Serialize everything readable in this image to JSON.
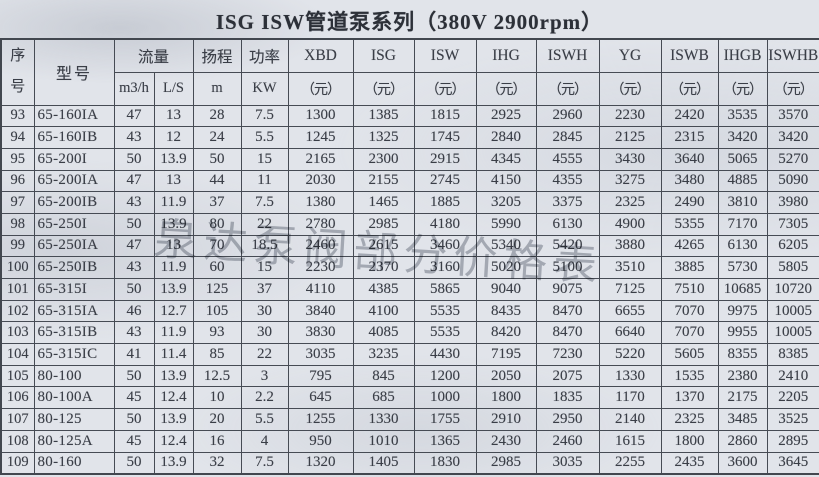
{
  "title": "ISG  ISW管道泵系列（380V  2900rpm）",
  "watermark": "泉达泵阀部分价格表",
  "colors": {
    "page_bg": "#e1e4ea",
    "grid_line": "#464b54",
    "text": "#3a3e47",
    "watermark": "#787e89"
  },
  "table": {
    "header": {
      "serial": "序\n号",
      "model": "型号",
      "flow": "流量",
      "flow_units": [
        "m3/h",
        "L/S"
      ],
      "head": "扬程",
      "head_unit": "m",
      "power": "功率",
      "power_unit": "KW",
      "brands": [
        "XBD",
        "ISG",
        "ISW",
        "IHG",
        "ISWH",
        "YG",
        "ISWB",
        "IHGB",
        "ISWHB"
      ],
      "unit_yuan": "（元）"
    },
    "rows": [
      {
        "no": "93",
        "model": "65-160IA",
        "values": [
          "47",
          "13",
          "28",
          "7.5",
          "1300",
          "1385",
          "1815",
          "2925",
          "2960",
          "2230",
          "2420",
          "3535",
          "3570"
        ]
      },
      {
        "no": "94",
        "model": "65-160IB",
        "values": [
          "43",
          "12",
          "24",
          "5.5",
          "1245",
          "1325",
          "1745",
          "2840",
          "2845",
          "2125",
          "2315",
          "3420",
          "3420"
        ]
      },
      {
        "no": "95",
        "model": "65-200I",
        "values": [
          "50",
          "13.9",
          "50",
          "15",
          "2165",
          "2300",
          "2915",
          "4345",
          "4555",
          "3430",
          "3640",
          "5065",
          "5270"
        ]
      },
      {
        "no": "96",
        "model": "65-200IA",
        "values": [
          "47",
          "13",
          "44",
          "11",
          "2030",
          "2155",
          "2745",
          "4150",
          "4355",
          "3275",
          "3480",
          "4885",
          "5090"
        ]
      },
      {
        "no": "97",
        "model": "65-200IB",
        "values": [
          "43",
          "11.9",
          "37",
          "7.5",
          "1380",
          "1465",
          "1885",
          "3205",
          "3375",
          "2325",
          "2490",
          "3810",
          "3980"
        ]
      },
      {
        "no": "98",
        "model": "65-250I",
        "values": [
          "50",
          "13.9",
          "80",
          "22",
          "2780",
          "2985",
          "4180",
          "5990",
          "6130",
          "4900",
          "5355",
          "7170",
          "7305"
        ]
      },
      {
        "no": "99",
        "model": "65-250IA",
        "values": [
          "47",
          "13",
          "70",
          "18.5",
          "2460",
          "2615",
          "3460",
          "5340",
          "5420",
          "3880",
          "4265",
          "6130",
          "6205"
        ]
      },
      {
        "no": "100",
        "model": "65-250IB",
        "values": [
          "43",
          "11.9",
          "60",
          "15",
          "2230",
          "2370",
          "3160",
          "5020",
          "5100",
          "3510",
          "3885",
          "5730",
          "5805"
        ]
      },
      {
        "no": "101",
        "model": "65-315I",
        "values": [
          "50",
          "13.9",
          "125",
          "37",
          "4110",
          "4385",
          "5865",
          "9040",
          "9075",
          "7125",
          "7510",
          "10685",
          "10720"
        ]
      },
      {
        "no": "102",
        "model": "65-315IA",
        "values": [
          "46",
          "12.7",
          "105",
          "30",
          "3840",
          "4100",
          "5535",
          "8435",
          "8470",
          "6655",
          "7070",
          "9975",
          "10005"
        ]
      },
      {
        "no": "103",
        "model": "65-315IB",
        "values": [
          "43",
          "11.9",
          "93",
          "30",
          "3830",
          "4085",
          "5535",
          "8420",
          "8470",
          "6640",
          "7070",
          "9955",
          "10005"
        ]
      },
      {
        "no": "104",
        "model": "65-315IC",
        "values": [
          "41",
          "11.4",
          "85",
          "22",
          "3035",
          "3235",
          "4430",
          "7195",
          "7230",
          "5220",
          "5605",
          "8355",
          "8385"
        ]
      },
      {
        "no": "105",
        "model": "80-100",
        "values": [
          "50",
          "13.9",
          "12.5",
          "3",
          "795",
          "845",
          "1200",
          "2050",
          "2075",
          "1330",
          "1535",
          "2380",
          "2410"
        ]
      },
      {
        "no": "106",
        "model": "80-100A",
        "values": [
          "45",
          "12.4",
          "10",
          "2.2",
          "645",
          "685",
          "1000",
          "1800",
          "1835",
          "1170",
          "1370",
          "2175",
          "2205"
        ]
      },
      {
        "no": "107",
        "model": "80-125",
        "values": [
          "50",
          "13.9",
          "20",
          "5.5",
          "1255",
          "1330",
          "1755",
          "2910",
          "2950",
          "2140",
          "2325",
          "3485",
          "3525"
        ]
      },
      {
        "no": "108",
        "model": "80-125A",
        "values": [
          "45",
          "12.4",
          "16",
          "4",
          "950",
          "1010",
          "1365",
          "2430",
          "2460",
          "1615",
          "1800",
          "2860",
          "2895"
        ]
      },
      {
        "no": "109",
        "model": "80-160",
        "values": [
          "50",
          "13.9",
          "32",
          "7.5",
          "1320",
          "1405",
          "1830",
          "2985",
          "3035",
          "2255",
          "2435",
          "3600",
          "3645"
        ]
      }
    ]
  }
}
